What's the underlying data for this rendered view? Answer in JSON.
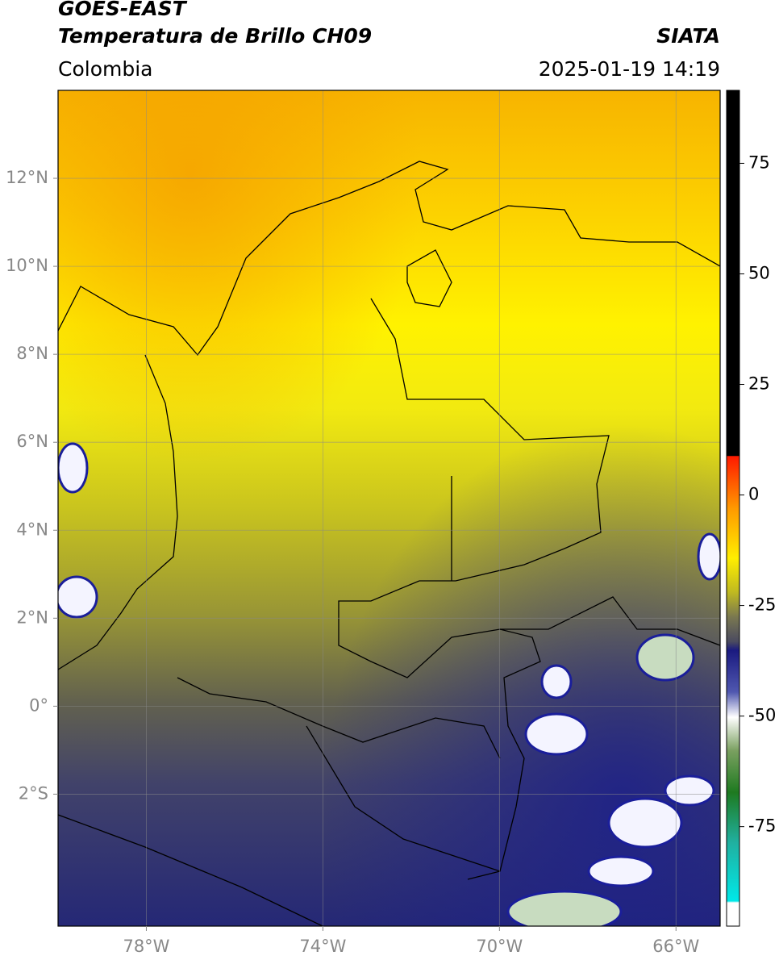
{
  "header": {
    "title": "GOES-EAST",
    "subtitle": "Temperatura de Brillo CH09",
    "source": "SIATA",
    "region": "Colombia",
    "datetime": "2025-01-19 14:19"
  },
  "map": {
    "xlim": [
      -80,
      -65
    ],
    "ylim": [
      -5,
      14
    ],
    "xticks": [
      {
        "value": -78,
        "label": "78°W"
      },
      {
        "value": -74,
        "label": "74°W"
      },
      {
        "value": -70,
        "label": "70°W"
      },
      {
        "value": -66,
        "label": "66°W"
      }
    ],
    "yticks": [
      {
        "value": 12,
        "label": "12°N"
      },
      {
        "value": 10,
        "label": "10°N"
      },
      {
        "value": 8,
        "label": "8°N"
      },
      {
        "value": 6,
        "label": "6°N"
      },
      {
        "value": 4,
        "label": "4°N"
      },
      {
        "value": 2,
        "label": "2°N"
      },
      {
        "value": 0,
        "label": "0°"
      },
      {
        "value": -2,
        "label": "2°S"
      }
    ],
    "grid": true
  },
  "colorbar": {
    "lim": [
      -97.5,
      91.5
    ],
    "ticks": [
      75,
      50,
      25,
      0,
      -25,
      -50,
      -75
    ]
  }
}
